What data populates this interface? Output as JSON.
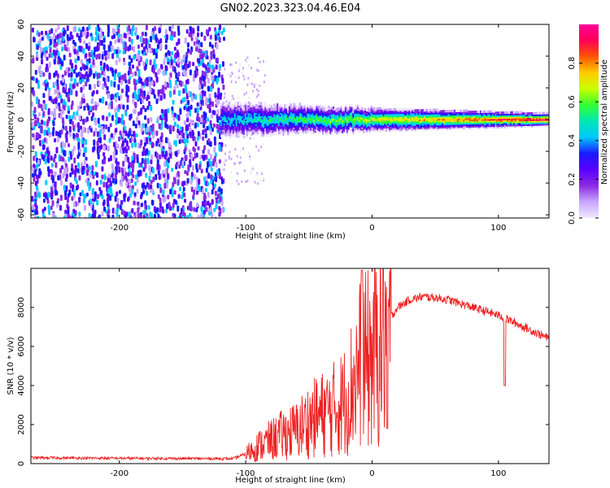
{
  "title": "GN02.2023.323.04.46.E04",
  "colors": {
    "snr_line": "#ee2222",
    "axis": "#000000",
    "colormap": [
      "#f0e8ff",
      "#c9a6ff",
      "#8a2be2",
      "#5a00ff",
      "#1a1aff",
      "#00c8ff",
      "#00e6b4",
      "#33ff33",
      "#c8ff00",
      "#ffcc00",
      "#ff5500",
      "#ff0055",
      "#ff0099"
    ]
  },
  "chart_data": [
    {
      "type": "heatmap",
      "xlabel": "Height of straight line (km)",
      "ylabel": "Frequency (Hz)",
      "xlim": [
        -270,
        140
      ],
      "ylim": [
        -62,
        60
      ],
      "xticks": [
        -200,
        -100,
        0,
        100
      ],
      "yticks": [
        -60,
        -40,
        -20,
        0,
        20,
        40,
        60
      ],
      "grid": false,
      "colorbar": {
        "label": "Normalized spectral amplitude",
        "range": [
          0.0,
          1.0
        ],
        "ticks": [
          0.0,
          0.2,
          0.4,
          0.6,
          0.8
        ]
      },
      "regions": [
        {
          "name": "noise",
          "x": [
            -270,
            -118
          ],
          "frequency_range": [
            -62,
            60
          ],
          "amplitude": [
            0.05,
            0.45
          ]
        },
        {
          "name": "sparse",
          "x": [
            -118,
            -85
          ],
          "frequency_range": [
            -40,
            40
          ],
          "amplitude": [
            0.02,
            0.1
          ]
        },
        {
          "name": "signal",
          "x": [
            -120,
            140
          ],
          "center_hz": 0,
          "halfwidth_hz": [
            10,
            4
          ],
          "peak_amplitude": 1.0
        }
      ]
    },
    {
      "type": "line",
      "xlabel": "Height of straight line (km)",
      "ylabel": "SNR (10 * v/v)",
      "xlim": [
        -270,
        140
      ],
      "ylim": [
        0,
        10000
      ],
      "xticks": [
        -200,
        -100,
        0,
        100
      ],
      "yticks": [
        0,
        2000,
        4000,
        6000,
        8000
      ],
      "grid": false,
      "series": [
        {
          "x": [
            -270,
            -220,
            -150,
            -110,
            -100,
            -90,
            -80,
            -70,
            -60,
            -50,
            -40,
            -30,
            -20,
            -15,
            -10,
            -5,
            0,
            5,
            10,
            20,
            30,
            40,
            50,
            60,
            70,
            80,
            90,
            100,
            110,
            120,
            130,
            140
          ],
          "values": [
            300,
            280,
            260,
            250,
            500,
            900,
            1200,
            1500,
            1700,
            2200,
            2500,
            2800,
            3300,
            4200,
            5000,
            5200,
            5400,
            6000,
            7000,
            8000,
            8400,
            8550,
            8500,
            8400,
            8200,
            8000,
            7800,
            7600,
            7300,
            7000,
            6700,
            6400
          ]
        }
      ],
      "annotations": [
        {
          "x": -8,
          "y": 9900,
          "note": "spike"
        },
        {
          "x": 12,
          "y": 1800,
          "note": "dip"
        },
        {
          "x": 105,
          "y": 4000,
          "note": "dip"
        }
      ]
    }
  ]
}
